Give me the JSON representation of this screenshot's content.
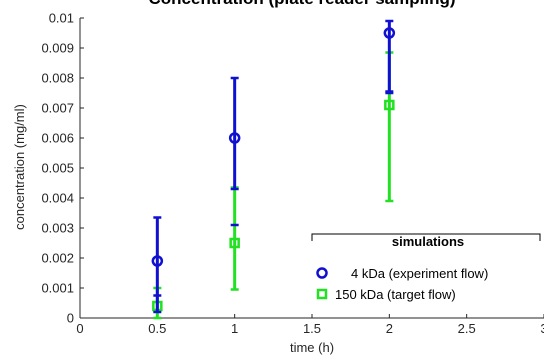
{
  "chart_data": {
    "type": "scatter",
    "title": "Concentration (plate reader sampling)",
    "xlabel": "time (h)",
    "ylabel": "concentration (mg/ml)",
    "xlim": [
      0,
      3
    ],
    "ylim": [
      0,
      0.01
    ],
    "x_ticks": [
      "0",
      "0.5",
      "1",
      "1.5",
      "2",
      "2.5",
      "3"
    ],
    "y_ticks": [
      "0",
      "0.001",
      "0.002",
      "0.003",
      "0.004",
      "0.005",
      "0.006",
      "0.007",
      "0.008",
      "0.009",
      "0.01"
    ],
    "grid": false,
    "legend_title": "simulations",
    "legend_position": "bottom-right",
    "series": [
      {
        "name": "4 kDa (experiment flow)",
        "color": "#1010d0",
        "marker": "circle",
        "x": [
          0.5,
          1,
          2
        ],
        "y": [
          0.0019,
          0.006,
          0.0095
        ],
        "err_low": [
          0.0002,
          0.0043,
          0.0075
        ],
        "err_high": [
          0.00335,
          0.008,
          0.0099
        ],
        "sim_mark": [
          0.00075,
          0.0031,
          0.00755
        ]
      },
      {
        "name": "150 kDa (target flow)",
        "color": "#22e022",
        "marker": "square",
        "x": [
          0.5,
          1,
          2
        ],
        "y": [
          0.0004,
          0.0025,
          0.0071
        ],
        "err_low": [
          0.0,
          0.00095,
          0.0039
        ],
        "err_high": [
          0.001,
          0.00435,
          0.00885
        ],
        "sim_mark": [
          0.0,
          0.0,
          0.0
        ]
      }
    ]
  }
}
